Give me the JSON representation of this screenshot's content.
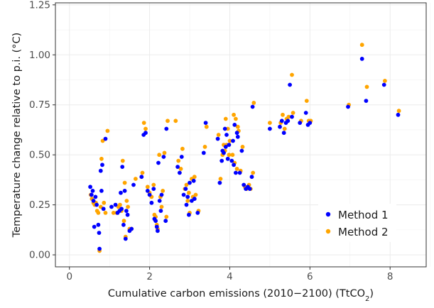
{
  "chart_data": {
    "type": "scatter",
    "xlabel": "Cumulative carbon emissions (2010−2100) (TtCO",
    "xlabel_sub": "2",
    "xlabel_end": ")",
    "ylabel": "Temperature change relative to p.i. (°C)",
    "xlim": [
      -0.35,
      8.9
    ],
    "ylim": [
      -0.06,
      1.26
    ],
    "xticks": [
      0,
      2,
      4,
      6,
      8
    ],
    "xtick_labels": [
      "0",
      "2",
      "4",
      "6",
      "8"
    ],
    "yticks": [
      0,
      0.25,
      0.5,
      0.75,
      1.0,
      1.25
    ],
    "ytick_labels": [
      "0.00",
      "0.25",
      "0.50",
      "0.75",
      "1.00",
      "1.25"
    ],
    "grid": true,
    "legend_position": "bottom-right",
    "series": [
      {
        "name": "Method 1",
        "color": "#0000ff",
        "points": [
          [
            0.52,
            0.34
          ],
          [
            0.55,
            0.3
          ],
          [
            0.58,
            0.32
          ],
          [
            0.6,
            0.27
          ],
          [
            0.62,
            0.14
          ],
          [
            0.65,
            0.29
          ],
          [
            0.68,
            0.25
          ],
          [
            0.72,
            0.15
          ],
          [
            0.74,
            0.11
          ],
          [
            0.75,
            0.03
          ],
          [
            0.78,
            0.42
          ],
          [
            0.8,
            0.32
          ],
          [
            0.82,
            0.45
          ],
          [
            0.85,
            0.23
          ],
          [
            0.9,
            0.58
          ],
          [
            1.05,
            0.24
          ],
          [
            1.15,
            0.25
          ],
          [
            1.2,
            0.21
          ],
          [
            1.25,
            0.22
          ],
          [
            1.28,
            0.31
          ],
          [
            1.3,
            0.23
          ],
          [
            1.32,
            0.44
          ],
          [
            1.35,
            0.15
          ],
          [
            1.38,
            0.32
          ],
          [
            1.4,
            0.08
          ],
          [
            1.42,
            0.22
          ],
          [
            1.45,
            0.2
          ],
          [
            1.5,
            0.12
          ],
          [
            1.55,
            0.13
          ],
          [
            1.6,
            0.35
          ],
          [
            1.8,
            0.39
          ],
          [
            1.85,
            0.6
          ],
          [
            1.9,
            0.61
          ],
          [
            1.95,
            0.32
          ],
          [
            2.0,
            0.3
          ],
          [
            2.05,
            0.26
          ],
          [
            2.1,
            0.33
          ],
          [
            2.12,
            0.18
          ],
          [
            2.15,
            0.17
          ],
          [
            2.18,
            0.14
          ],
          [
            2.2,
            0.12
          ],
          [
            2.22,
            0.46
          ],
          [
            2.25,
            0.27
          ],
          [
            2.28,
            0.22
          ],
          [
            2.3,
            0.3
          ],
          [
            2.35,
            0.49
          ],
          [
            2.4,
            0.17
          ],
          [
            2.42,
            0.63
          ],
          [
            2.7,
            0.44
          ],
          [
            2.75,
            0.41
          ],
          [
            2.8,
            0.49
          ],
          [
            2.85,
            0.3
          ],
          [
            2.9,
            0.33
          ],
          [
            2.92,
            0.25
          ],
          [
            2.95,
            0.29
          ],
          [
            2.98,
            0.2
          ],
          [
            3.0,
            0.36
          ],
          [
            3.05,
            0.27
          ],
          [
            3.1,
            0.37
          ],
          [
            3.12,
            0.28
          ],
          [
            3.2,
            0.21
          ],
          [
            3.35,
            0.51
          ],
          [
            3.4,
            0.66
          ],
          [
            3.7,
            0.58
          ],
          [
            3.75,
            0.36
          ],
          [
            3.8,
            0.47
          ],
          [
            3.82,
            0.52
          ],
          [
            3.85,
            0.51
          ],
          [
            3.88,
            0.63
          ],
          [
            3.9,
            0.54
          ],
          [
            3.92,
            0.6
          ],
          [
            3.95,
            0.48
          ],
          [
            3.98,
            0.55
          ],
          [
            4.05,
            0.47
          ],
          [
            4.08,
            0.57
          ],
          [
            4.1,
            0.45
          ],
          [
            4.12,
            0.65
          ],
          [
            4.15,
            0.41
          ],
          [
            4.18,
            0.61
          ],
          [
            4.2,
            0.59
          ],
          [
            4.25,
            0.41
          ],
          [
            4.3,
            0.52
          ],
          [
            4.35,
            0.35
          ],
          [
            4.4,
            0.33
          ],
          [
            4.45,
            0.34
          ],
          [
            4.5,
            0.33
          ],
          [
            4.55,
            0.39
          ],
          [
            4.57,
            0.74
          ],
          [
            5.0,
            0.63
          ],
          [
            5.25,
            0.64
          ],
          [
            5.3,
            0.67
          ],
          [
            5.35,
            0.61
          ],
          [
            5.4,
            0.66
          ],
          [
            5.45,
            0.67
          ],
          [
            5.5,
            0.85
          ],
          [
            5.55,
            0.69
          ],
          [
            5.75,
            0.66
          ],
          [
            5.9,
            0.71
          ],
          [
            5.95,
            0.65
          ],
          [
            6.0,
            0.66
          ],
          [
            6.95,
            0.74
          ],
          [
            7.3,
            0.98
          ],
          [
            7.4,
            0.77
          ],
          [
            7.85,
            0.85
          ],
          [
            8.2,
            0.7
          ]
        ]
      },
      {
        "name": "Method 2",
        "color": "#ffa500",
        "points": [
          [
            0.53,
            0.3
          ],
          [
            0.56,
            0.28
          ],
          [
            0.6,
            0.26
          ],
          [
            0.63,
            0.25
          ],
          [
            0.66,
            0.26
          ],
          [
            0.69,
            0.22
          ],
          [
            0.72,
            0.21
          ],
          [
            0.75,
            0.02
          ],
          [
            0.78,
            0.24
          ],
          [
            0.8,
            0.48
          ],
          [
            0.83,
            0.57
          ],
          [
            0.86,
            0.26
          ],
          [
            0.9,
            0.21
          ],
          [
            0.95,
            0.62
          ],
          [
            1.1,
            0.21
          ],
          [
            1.18,
            0.21
          ],
          [
            1.22,
            0.24
          ],
          [
            1.26,
            0.25
          ],
          [
            1.3,
            0.22
          ],
          [
            1.33,
            0.47
          ],
          [
            1.36,
            0.17
          ],
          [
            1.38,
            0.36
          ],
          [
            1.4,
            0.09
          ],
          [
            1.43,
            0.27
          ],
          [
            1.46,
            0.24
          ],
          [
            1.5,
            0.13
          ],
          [
            1.55,
            0.13
          ],
          [
            1.65,
            0.38
          ],
          [
            1.82,
            0.41
          ],
          [
            1.86,
            0.66
          ],
          [
            1.9,
            0.63
          ],
          [
            1.95,
            0.34
          ],
          [
            2.0,
            0.31
          ],
          [
            2.05,
            0.29
          ],
          [
            2.1,
            0.35
          ],
          [
            2.12,
            0.2
          ],
          [
            2.15,
            0.19
          ],
          [
            2.18,
            0.15
          ],
          [
            2.2,
            0.13
          ],
          [
            2.24,
            0.5
          ],
          [
            2.27,
            0.29
          ],
          [
            2.3,
            0.24
          ],
          [
            2.33,
            0.32
          ],
          [
            2.37,
            0.51
          ],
          [
            2.42,
            0.19
          ],
          [
            2.45,
            0.67
          ],
          [
            2.65,
            0.67
          ],
          [
            2.72,
            0.47
          ],
          [
            2.78,
            0.43
          ],
          [
            2.82,
            0.53
          ],
          [
            2.88,
            0.33
          ],
          [
            2.92,
            0.35
          ],
          [
            2.95,
            0.27
          ],
          [
            2.98,
            0.31
          ],
          [
            3.0,
            0.21
          ],
          [
            3.05,
            0.38
          ],
          [
            3.08,
            0.29
          ],
          [
            3.12,
            0.39
          ],
          [
            3.15,
            0.3
          ],
          [
            3.22,
            0.22
          ],
          [
            3.38,
            0.54
          ],
          [
            3.42,
            0.64
          ],
          [
            3.72,
            0.6
          ],
          [
            3.77,
            0.38
          ],
          [
            3.82,
            0.5
          ],
          [
            3.85,
            0.55
          ],
          [
            3.88,
            0.52
          ],
          [
            3.9,
            0.68
          ],
          [
            3.92,
            0.55
          ],
          [
            3.95,
            0.63
          ],
          [
            3.98,
            0.5
          ],
          [
            4.0,
            0.57
          ],
          [
            4.07,
            0.5
          ],
          [
            4.1,
            0.7
          ],
          [
            4.12,
            0.46
          ],
          [
            4.15,
            0.68
          ],
          [
            4.18,
            0.43
          ],
          [
            4.2,
            0.64
          ],
          [
            4.22,
            0.62
          ],
          [
            4.27,
            0.42
          ],
          [
            4.32,
            0.54
          ],
          [
            4.38,
            0.34
          ],
          [
            4.42,
            0.33
          ],
          [
            4.48,
            0.35
          ],
          [
            4.52,
            0.33
          ],
          [
            4.58,
            0.41
          ],
          [
            4.6,
            0.76
          ],
          [
            5.0,
            0.66
          ],
          [
            5.27,
            0.66
          ],
          [
            5.32,
            0.7
          ],
          [
            5.37,
            0.63
          ],
          [
            5.42,
            0.68
          ],
          [
            5.47,
            0.69
          ],
          [
            5.55,
            0.9
          ],
          [
            5.58,
            0.71
          ],
          [
            5.78,
            0.67
          ],
          [
            5.92,
            0.77
          ],
          [
            5.97,
            0.67
          ],
          [
            6.02,
            0.67
          ],
          [
            6.97,
            0.75
          ],
          [
            7.3,
            1.05
          ],
          [
            7.42,
            0.84
          ],
          [
            7.87,
            0.87
          ],
          [
            8.22,
            0.72
          ]
        ]
      }
    ]
  }
}
